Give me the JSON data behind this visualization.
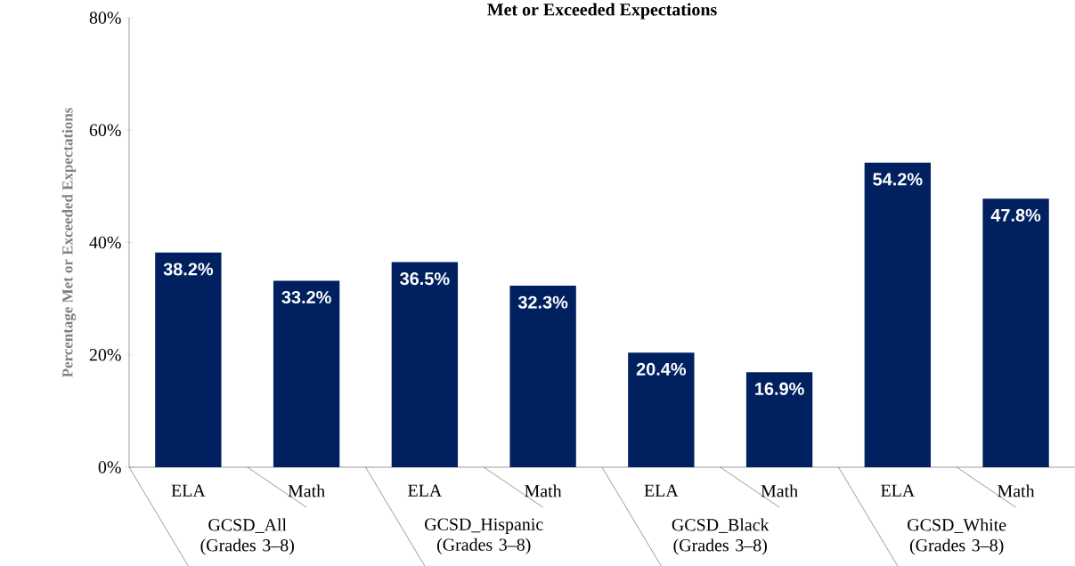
{
  "chart_data": {
    "type": "bar",
    "title": "Met or Exceeded Expectations",
    "ylabel": "Percentage Met or Exceeded Expectations",
    "categories": [
      "ELA",
      "Math",
      "ELA",
      "Math",
      "ELA",
      "Math",
      "ELA",
      "Math"
    ],
    "values": [
      38.2,
      33.2,
      36.5,
      32.3,
      20.4,
      16.9,
      54.2,
      47.8
    ],
    "value_labels": [
      "38.2%",
      "33.2%",
      "36.5%",
      "32.3%",
      "20.4%",
      "16.9%",
      "54.2%",
      "47.8%"
    ],
    "color": "#002060",
    "ylim": [
      0,
      80
    ],
    "yticks": [
      {
        "value": 0,
        "label": "0%"
      },
      {
        "value": 20,
        "label": "20%"
      },
      {
        "value": 40,
        "label": "40%"
      },
      {
        "value": 60,
        "label": "60%"
      },
      {
        "value": 80,
        "label": "80%"
      }
    ],
    "annotations": [
      "GCSD_All (Grades 3–8)",
      "GCSD_Hispanic (Grades 3–8)",
      "GCSD_Black (Grades 3–8)",
      "GCSD_White (Grades 3–8)"
    ],
    "grid": false
  }
}
